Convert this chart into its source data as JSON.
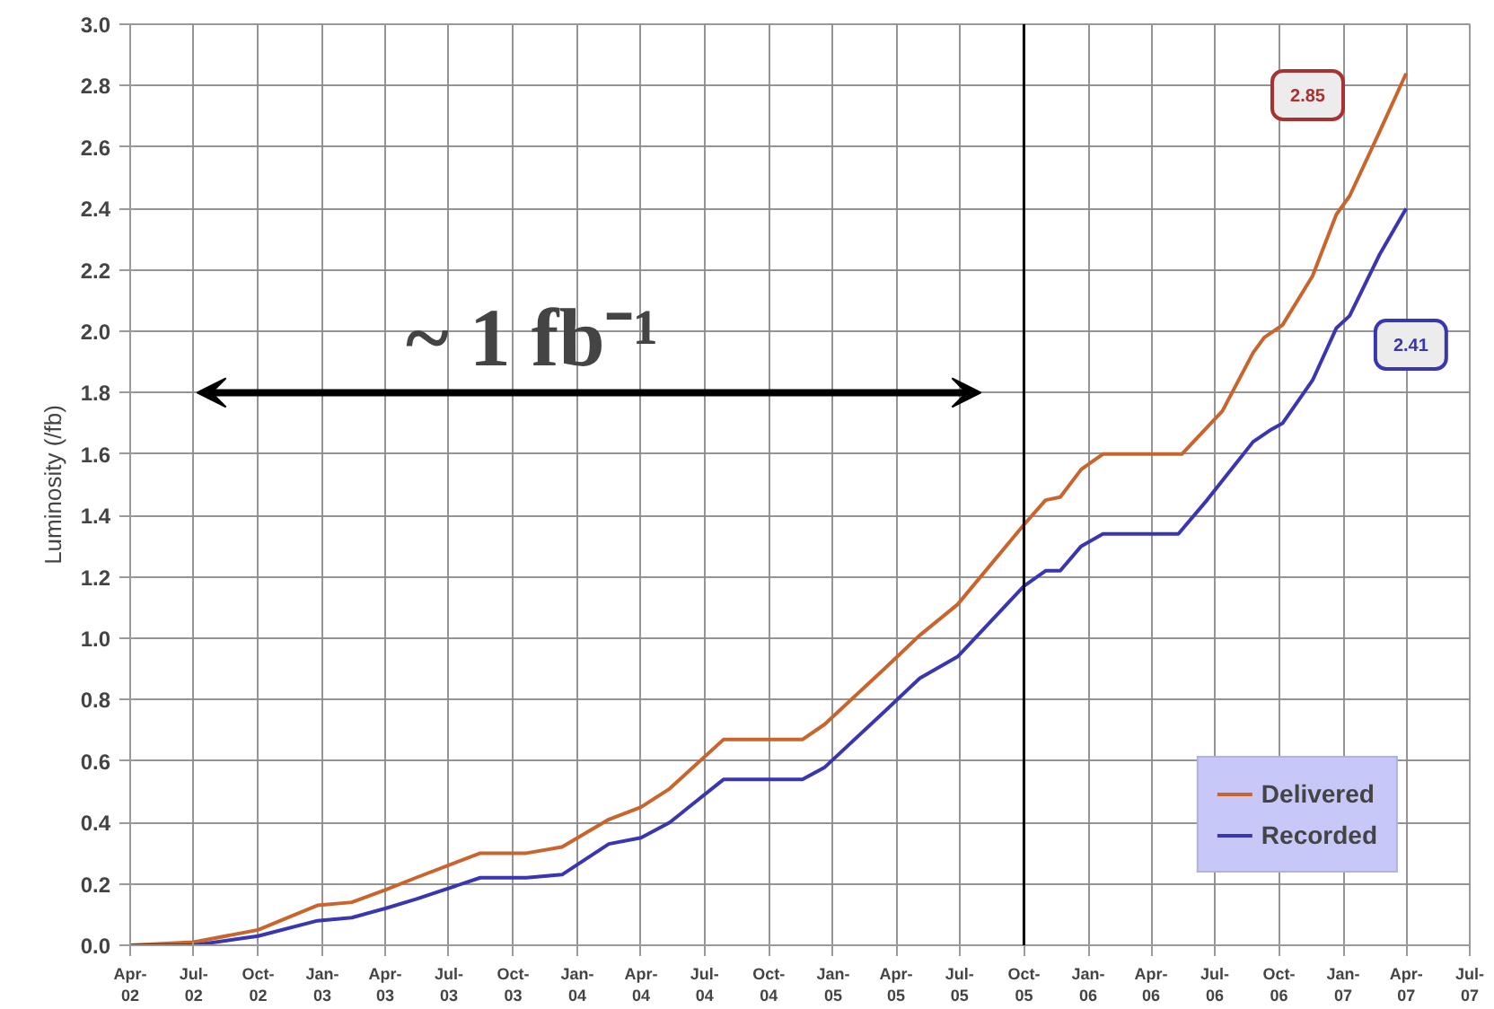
{
  "chart_data": {
    "type": "line",
    "ylabel": "Luminosity (/fb)",
    "xlim": [
      "2002-04",
      "2007-07"
    ],
    "ylim": [
      0,
      3.0
    ],
    "xticks": [
      {
        "value": "2002-04",
        "label": "Apr-\n02"
      },
      {
        "value": "2002-07",
        "label": "Jul-\n02"
      },
      {
        "value": "2002-10",
        "label": "Oct-\n02"
      },
      {
        "value": "2003-01",
        "label": "Jan-\n03"
      },
      {
        "value": "2003-04",
        "label": "Apr-\n03"
      },
      {
        "value": "2003-07",
        "label": "Jul-\n03"
      },
      {
        "value": "2003-10",
        "label": "Oct-\n03"
      },
      {
        "value": "2004-01",
        "label": "Jan-\n04"
      },
      {
        "value": "2004-04",
        "label": "Apr-\n04"
      },
      {
        "value": "2004-07",
        "label": "Jul-\n04"
      },
      {
        "value": "2004-10",
        "label": "Oct-\n04"
      },
      {
        "value": "2005-01",
        "label": "Jan-\n05"
      },
      {
        "value": "2005-04",
        "label": "Apr-\n05"
      },
      {
        "value": "2005-07",
        "label": "Jul-\n05"
      },
      {
        "value": "2005-10",
        "label": "Oct-\n05"
      },
      {
        "value": "2006-01",
        "label": "Jan-\n06"
      },
      {
        "value": "2006-04",
        "label": "Apr-\n06"
      },
      {
        "value": "2006-07",
        "label": "Jul-\n06"
      },
      {
        "value": "2006-10",
        "label": "Oct-\n06"
      },
      {
        "value": "2007-01",
        "label": "Jan-\n07"
      },
      {
        "value": "2007-04",
        "label": "Apr-\n07"
      },
      {
        "value": "2007-07",
        "label": "Jul-\n07"
      }
    ],
    "yticks": [
      {
        "value": 0,
        "label": "0.0"
      },
      0.2,
      0.4,
      0.6,
      0.8,
      {
        "value": 1,
        "label": "1.0"
      },
      1.2,
      1.4,
      1.6,
      1.8,
      {
        "value": 2,
        "label": "2.0"
      },
      2.2,
      2.4,
      2.6,
      2.8,
      {
        "value": 3,
        "label": "3.0"
      }
    ],
    "grid": true,
    "legend": "bottom right",
    "line_style": "solid",
    "series": [
      {
        "name": "Delivered",
        "color": "#c8642c",
        "x": [
          "2002-04-01",
          "2002-07-01",
          "2002-10-01",
          "2002-12-25",
          "2003-02-12",
          "2003-04-01",
          "2003-05-15",
          "2003-08-15",
          "2003-10-20",
          "2003-12-10",
          "2004-02-15",
          "2004-04-01",
          "2004-05-12",
          "2004-07-28",
          "2004-11-18",
          "2004-12-20",
          "2005-03-15",
          "2005-05-05",
          "2005-06-28",
          "2005-10-01",
          "2005-11-01",
          "2005-11-22",
          "2005-12-22",
          "2006-01-22",
          "2006-05-15",
          "2006-07-12",
          "2006-08-25",
          "2006-09-10",
          "2006-10-06",
          "2006-11-18",
          "2006-12-22",
          "2007-01-10",
          "2007-02-22",
          "2007-04-01"
        ],
        "values": [
          0.0,
          0.01,
          0.05,
          0.13,
          0.14,
          0.18,
          0.22,
          0.3,
          0.3,
          0.32,
          0.41,
          0.45,
          0.51,
          0.67,
          0.67,
          0.72,
          0.9,
          1.01,
          1.11,
          1.37,
          1.45,
          1.46,
          1.55,
          1.6,
          1.6,
          1.74,
          1.93,
          1.98,
          2.02,
          2.18,
          2.38,
          2.44,
          2.65,
          2.84
        ]
      },
      {
        "name": "Recorded",
        "color": "#3a35b0",
        "x": [
          "2002-04-01",
          "2002-07-01",
          "2002-10-01",
          "2002-12-25",
          "2003-02-12",
          "2003-04-01",
          "2003-05-15",
          "2003-08-15",
          "2003-10-20",
          "2003-12-10",
          "2004-02-15",
          "2004-04-01",
          "2004-05-12",
          "2004-07-28",
          "2004-11-18",
          "2004-12-20",
          "2005-03-15",
          "2005-05-05",
          "2005-06-28",
          "2005-10-01",
          "2005-11-01",
          "2005-11-22",
          "2005-12-22",
          "2006-01-22",
          "2006-05-10",
          "2006-06-20",
          "2006-08-25",
          "2006-09-20",
          "2006-10-06",
          "2006-11-18",
          "2006-12-22",
          "2007-01-10",
          "2007-02-22",
          "2007-04-01"
        ],
        "values": [
          0.0,
          0.0,
          0.03,
          0.08,
          0.09,
          0.12,
          0.15,
          0.22,
          0.22,
          0.23,
          0.33,
          0.35,
          0.4,
          0.54,
          0.54,
          0.58,
          0.76,
          0.87,
          0.94,
          1.17,
          1.22,
          1.22,
          1.3,
          1.34,
          1.34,
          1.45,
          1.64,
          1.68,
          1.7,
          1.84,
          2.01,
          2.05,
          2.25,
          2.4
        ]
      }
    ],
    "ref_lines": [
      {
        "axis": "x",
        "value": "2005-10",
        "color": "#000000"
      }
    ],
    "annotations": [
      "~ 1 fb⁻¹",
      "2.85",
      "2.41"
    ]
  }
}
